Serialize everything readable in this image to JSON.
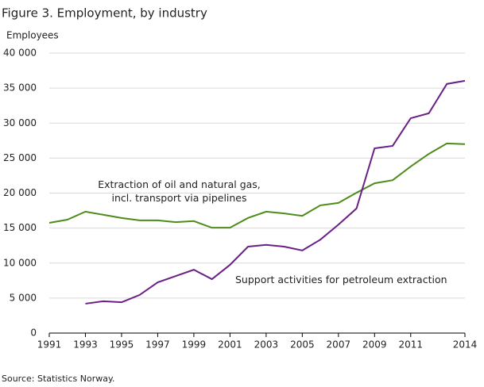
{
  "chart_data": {
    "type": "line",
    "title": "Figure 3. Employment, by industry",
    "y_label": "Employees",
    "source": "Source: Statistics Norway.",
    "x": [
      1991,
      1992,
      1993,
      1994,
      1995,
      1996,
      1997,
      1998,
      1999,
      2000,
      2001,
      2002,
      2003,
      2004,
      2005,
      2006,
      2007,
      2008,
      2009,
      2010,
      2011,
      2012,
      2013,
      2014
    ],
    "series": [
      {
        "name": "Extraction of oil and natural gas, incl. transport via pipelines",
        "color": "#4e8c1a",
        "values": [
          15750,
          16200,
          17350,
          16900,
          16450,
          16100,
          16100,
          15850,
          16000,
          15050,
          15050,
          16450,
          17350,
          17100,
          16750,
          18250,
          18600,
          20050,
          21400,
          21850,
          23800,
          25600,
          27100,
          27000
        ]
      },
      {
        "name": "Support activities for petroleum extraction",
        "color": "#6a1f86",
        "values": [
          null,
          null,
          4200,
          4550,
          4400,
          5450,
          7250,
          8150,
          9050,
          7700,
          9750,
          12350,
          12600,
          12350,
          11800,
          13350,
          15500,
          17800,
          26400,
          26750,
          30700,
          31400,
          35600,
          36050
        ]
      }
    ],
    "xlim": [
      1991,
      2014
    ],
    "xticks": [
      1991,
      1993,
      1995,
      1997,
      1999,
      2001,
      2003,
      2005,
      2007,
      2009,
      2011,
      2014
    ],
    "ylim": [
      0,
      40000
    ],
    "yticks": [
      0,
      {
        "value": 5000,
        "label": "5 000"
      },
      {
        "value": 10000,
        "label": "10 000"
      },
      {
        "value": 15000,
        "label": "15 000"
      },
      {
        "value": 20000,
        "label": "20 000"
      },
      {
        "value": 25000,
        "label": "25 000"
      },
      {
        "value": 30000,
        "label": "30 000"
      },
      {
        "value": 35000,
        "label": "35 000"
      },
      {
        "value": 40000,
        "label": "40 000"
      }
    ],
    "grid": true
  }
}
